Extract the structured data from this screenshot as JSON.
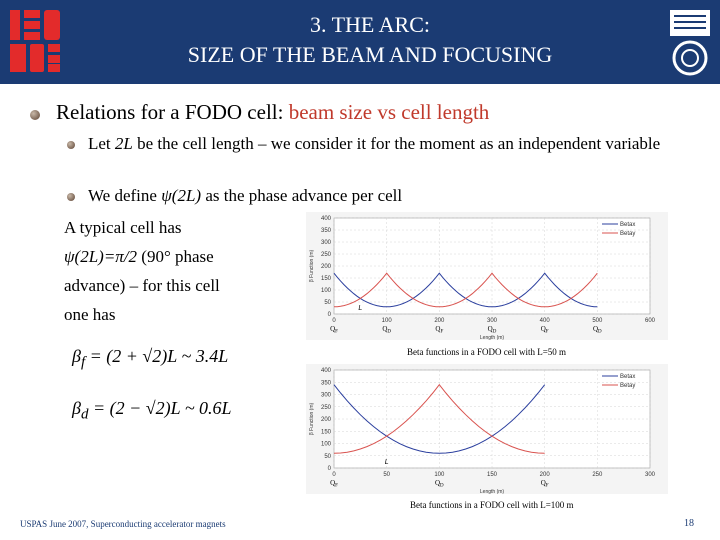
{
  "header": {
    "title_line1": "3. THE ARC:",
    "title_line2": "SIZE OF THE BEAM AND FOCUSING"
  },
  "content": {
    "bullet1_prefix": "Relations for a FODO cell: ",
    "bullet1_highlight": "beam size vs cell length",
    "sub1_a": "Let ",
    "sub1_var": "2L",
    "sub1_b": " be the cell length – we consider it for the moment as an independent variable",
    "sub2_a": "We define ",
    "sub2_var": "ψ(2L)",
    "sub2_b": " as the phase advance per cell",
    "para_line1": "A typical cell has",
    "para_line2_var": "ψ(2L)=π/2",
    "para_line2_rest": " (90° phase",
    "para_line3": "advance) – for this cell",
    "para_line4": "one has",
    "formula1": "β_f = (2 + √2)L ~ 3.4L",
    "formula2": "β_d = (2 − √2)L ~ 0.6L"
  },
  "chart_data": [
    {
      "type": "line",
      "x": [
        0,
        100,
        200,
        300,
        400,
        500
      ],
      "series": [
        {
          "name": "Betax",
          "values": [
            170,
            30,
            170,
            30,
            170,
            30
          ]
        },
        {
          "name": "Betay",
          "values": [
            30,
            170,
            30,
            170,
            30,
            170
          ]
        }
      ],
      "xlim": [
        0,
        600
      ],
      "ylim": [
        0,
        400
      ],
      "yticks": [
        0,
        50,
        100,
        150,
        200,
        250,
        300,
        350,
        400
      ],
      "xticks": [
        0,
        100,
        200,
        300,
        400,
        500,
        600
      ],
      "magnet_labels": [
        "QF",
        "QD",
        "QF",
        "QD",
        "QF",
        "QD"
      ],
      "xlabel": "Length (m)",
      "ylabel": "β Function (m)",
      "cell_label": "L",
      "caption": "Beta functions in a FODO cell with L=50 m",
      "legend": "top-right"
    },
    {
      "type": "line",
      "series": [
        {
          "name": "Betax",
          "values": [
            340,
            60,
            340
          ]
        },
        {
          "name": "Betay",
          "values": [
            60,
            340,
            60
          ]
        }
      ],
      "x": [
        0,
        100,
        200
      ],
      "xlim": [
        0,
        300
      ],
      "ylim": [
        0,
        400
      ],
      "yticks": [
        0,
        50,
        100,
        150,
        200,
        250,
        300,
        350,
        400
      ],
      "xticks": [
        0,
        50,
        100,
        150,
        200,
        250,
        300
      ],
      "magnet_labels": [
        "QF",
        "QD",
        "QF"
      ],
      "xlabel": "Length (m)",
      "ylabel": "β Function (m)",
      "cell_label": "L",
      "caption": "Beta functions in a FODO cell with L=100 m",
      "legend": "top-right"
    }
  ],
  "footer": {
    "text": "USPAS June 2007, Superconducting accelerator magnets",
    "page": "18"
  },
  "colors": {
    "header_bg": "#1b3b73",
    "highlight": "#c0392b",
    "betax": "#2b3f9e",
    "betay": "#d9534f"
  }
}
